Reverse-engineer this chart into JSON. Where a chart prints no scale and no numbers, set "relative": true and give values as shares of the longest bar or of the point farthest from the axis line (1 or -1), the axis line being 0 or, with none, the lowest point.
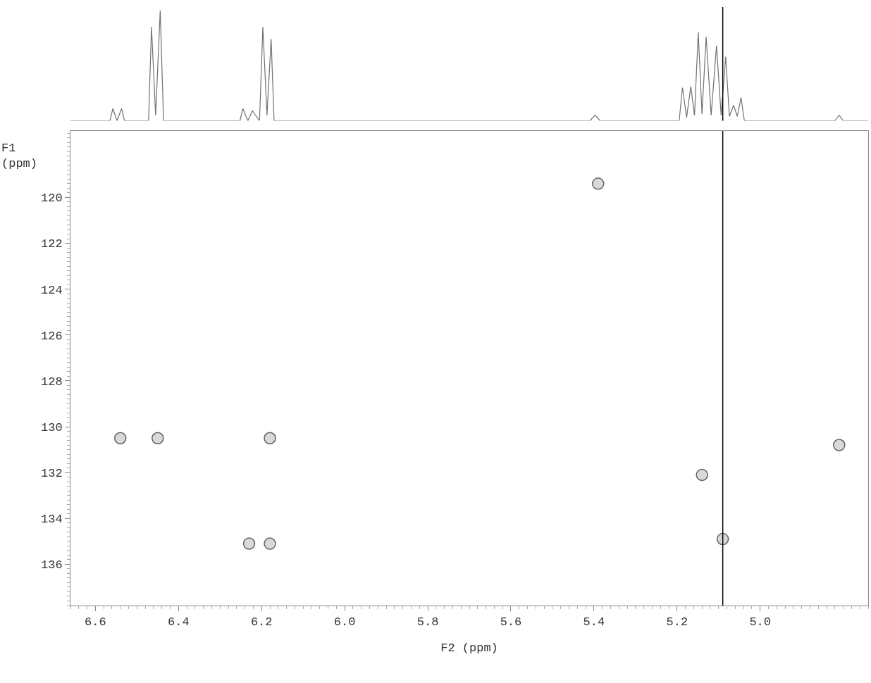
{
  "chart_data": [
    {
      "type": "line",
      "relative": true,
      "color": "#707070",
      "marker": "none",
      "x": [
        6.66,
        6.565,
        6.558,
        6.548,
        6.537,
        6.53,
        6.472,
        6.465,
        6.455,
        6.444,
        6.436,
        6.252,
        6.245,
        6.233,
        6.222,
        6.205,
        6.197,
        6.187,
        6.177,
        6.17,
        5.41,
        5.397,
        5.385,
        5.195,
        5.187,
        5.177,
        5.167,
        5.158,
        5.149,
        5.14,
        5.13,
        5.118,
        5.105,
        5.094,
        5.083,
        5.074,
        5.064,
        5.055,
        5.046,
        5.038,
        4.82,
        4.81,
        4.8,
        4.74
      ],
      "values": [
        0,
        0,
        0.11,
        0,
        0.11,
        0,
        0,
        0.85,
        0.05,
        1,
        0,
        0,
        0.11,
        0,
        0.09,
        0,
        0.85,
        0.05,
        0.74,
        0,
        0,
        0.05,
        0,
        0,
        0.3,
        0.03,
        0.31,
        0.05,
        0.8,
        0.06,
        0.76,
        0.05,
        0.68,
        0.05,
        0.58,
        0.04,
        0.14,
        0.04,
        0.21,
        0,
        0,
        0.05,
        0,
        0
      ],
      "xlim": [
        6.66,
        4.74
      ],
      "ref_lines": [
        {
          "axis": "x",
          "value": 5.09,
          "color": "#000000"
        }
      ]
    },
    {
      "type": "scatter",
      "color": "#606060",
      "marker": "circle",
      "x": [
        6.54,
        6.45,
        6.18,
        6.23,
        6.18,
        5.39,
        5.14,
        5.09,
        4.81
      ],
      "values": [
        130.5,
        130.5,
        130.5,
        135.1,
        135.1,
        119.4,
        132.1,
        134.9,
        130.8
      ],
      "xlim": [
        6.66,
        4.74
      ],
      "ylim": [
        137.8,
        117.1
      ],
      "xticks": [
        {
          "value": 6.6,
          "label": "6.6"
        },
        {
          "value": 6.4,
          "label": "6.4"
        },
        {
          "value": 6.2,
          "label": "6.2"
        },
        {
          "value": 6.0,
          "label": "6.0"
        },
        {
          "value": 5.8,
          "label": "5.8"
        },
        {
          "value": 5.6,
          "label": "5.6"
        },
        {
          "value": 5.4,
          "label": "5.4"
        },
        {
          "value": 5.2,
          "label": "5.2"
        },
        {
          "value": 5.0,
          "label": "5.0"
        }
      ],
      "yticks": [
        120,
        122,
        124,
        126,
        128,
        130,
        132,
        134,
        136
      ],
      "xlabel": "F2 (ppm)",
      "ylabel": "F1 (ppm)",
      "ref_lines": [
        {
          "axis": "x",
          "value": 5.09,
          "color": "#000000"
        }
      ]
    }
  ]
}
